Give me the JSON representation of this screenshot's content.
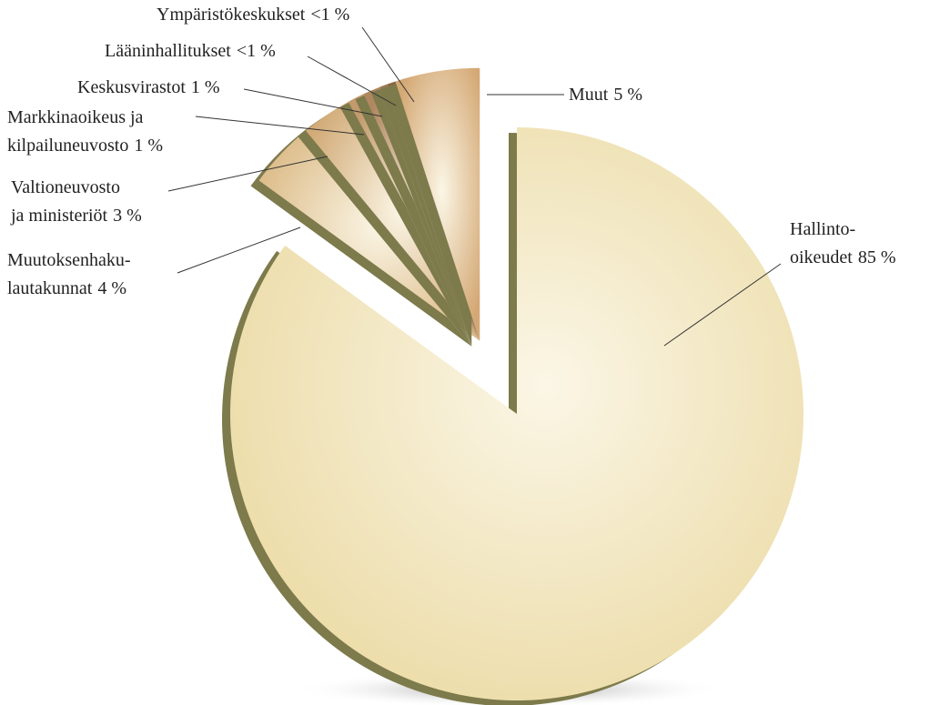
{
  "chart_data": {
    "type": "pie",
    "categories": [
      [
        "Hallinto-",
        "oikeudet"
      ],
      [
        "Muutoksenhaku-",
        "lautakunnat"
      ],
      [
        "Valtioneuvosto",
        "ja ministeriöt"
      ],
      [
        "Markkinaoikeus ja",
        "kilpailuneuvosto"
      ],
      [
        "Keskusvirastot"
      ],
      [
        "Lääninhallitukset"
      ],
      [
        "Ympäristökeskukset"
      ],
      [
        "Muut"
      ]
    ],
    "values": [
      85,
      4,
      3,
      1,
      1,
      0.5,
      0.5,
      5
    ],
    "value_labels": [
      "85 %",
      "4 %",
      "3 %",
      "1 %",
      "1 %",
      "<1 %",
      "<1 %",
      "5 %"
    ],
    "colors": [
      "#ecdca8",
      "#dcbb88",
      "#d2ab78",
      "#c29a6c",
      "#b08860",
      "#9c7752",
      "#8a6846",
      "#d4a874"
    ]
  }
}
